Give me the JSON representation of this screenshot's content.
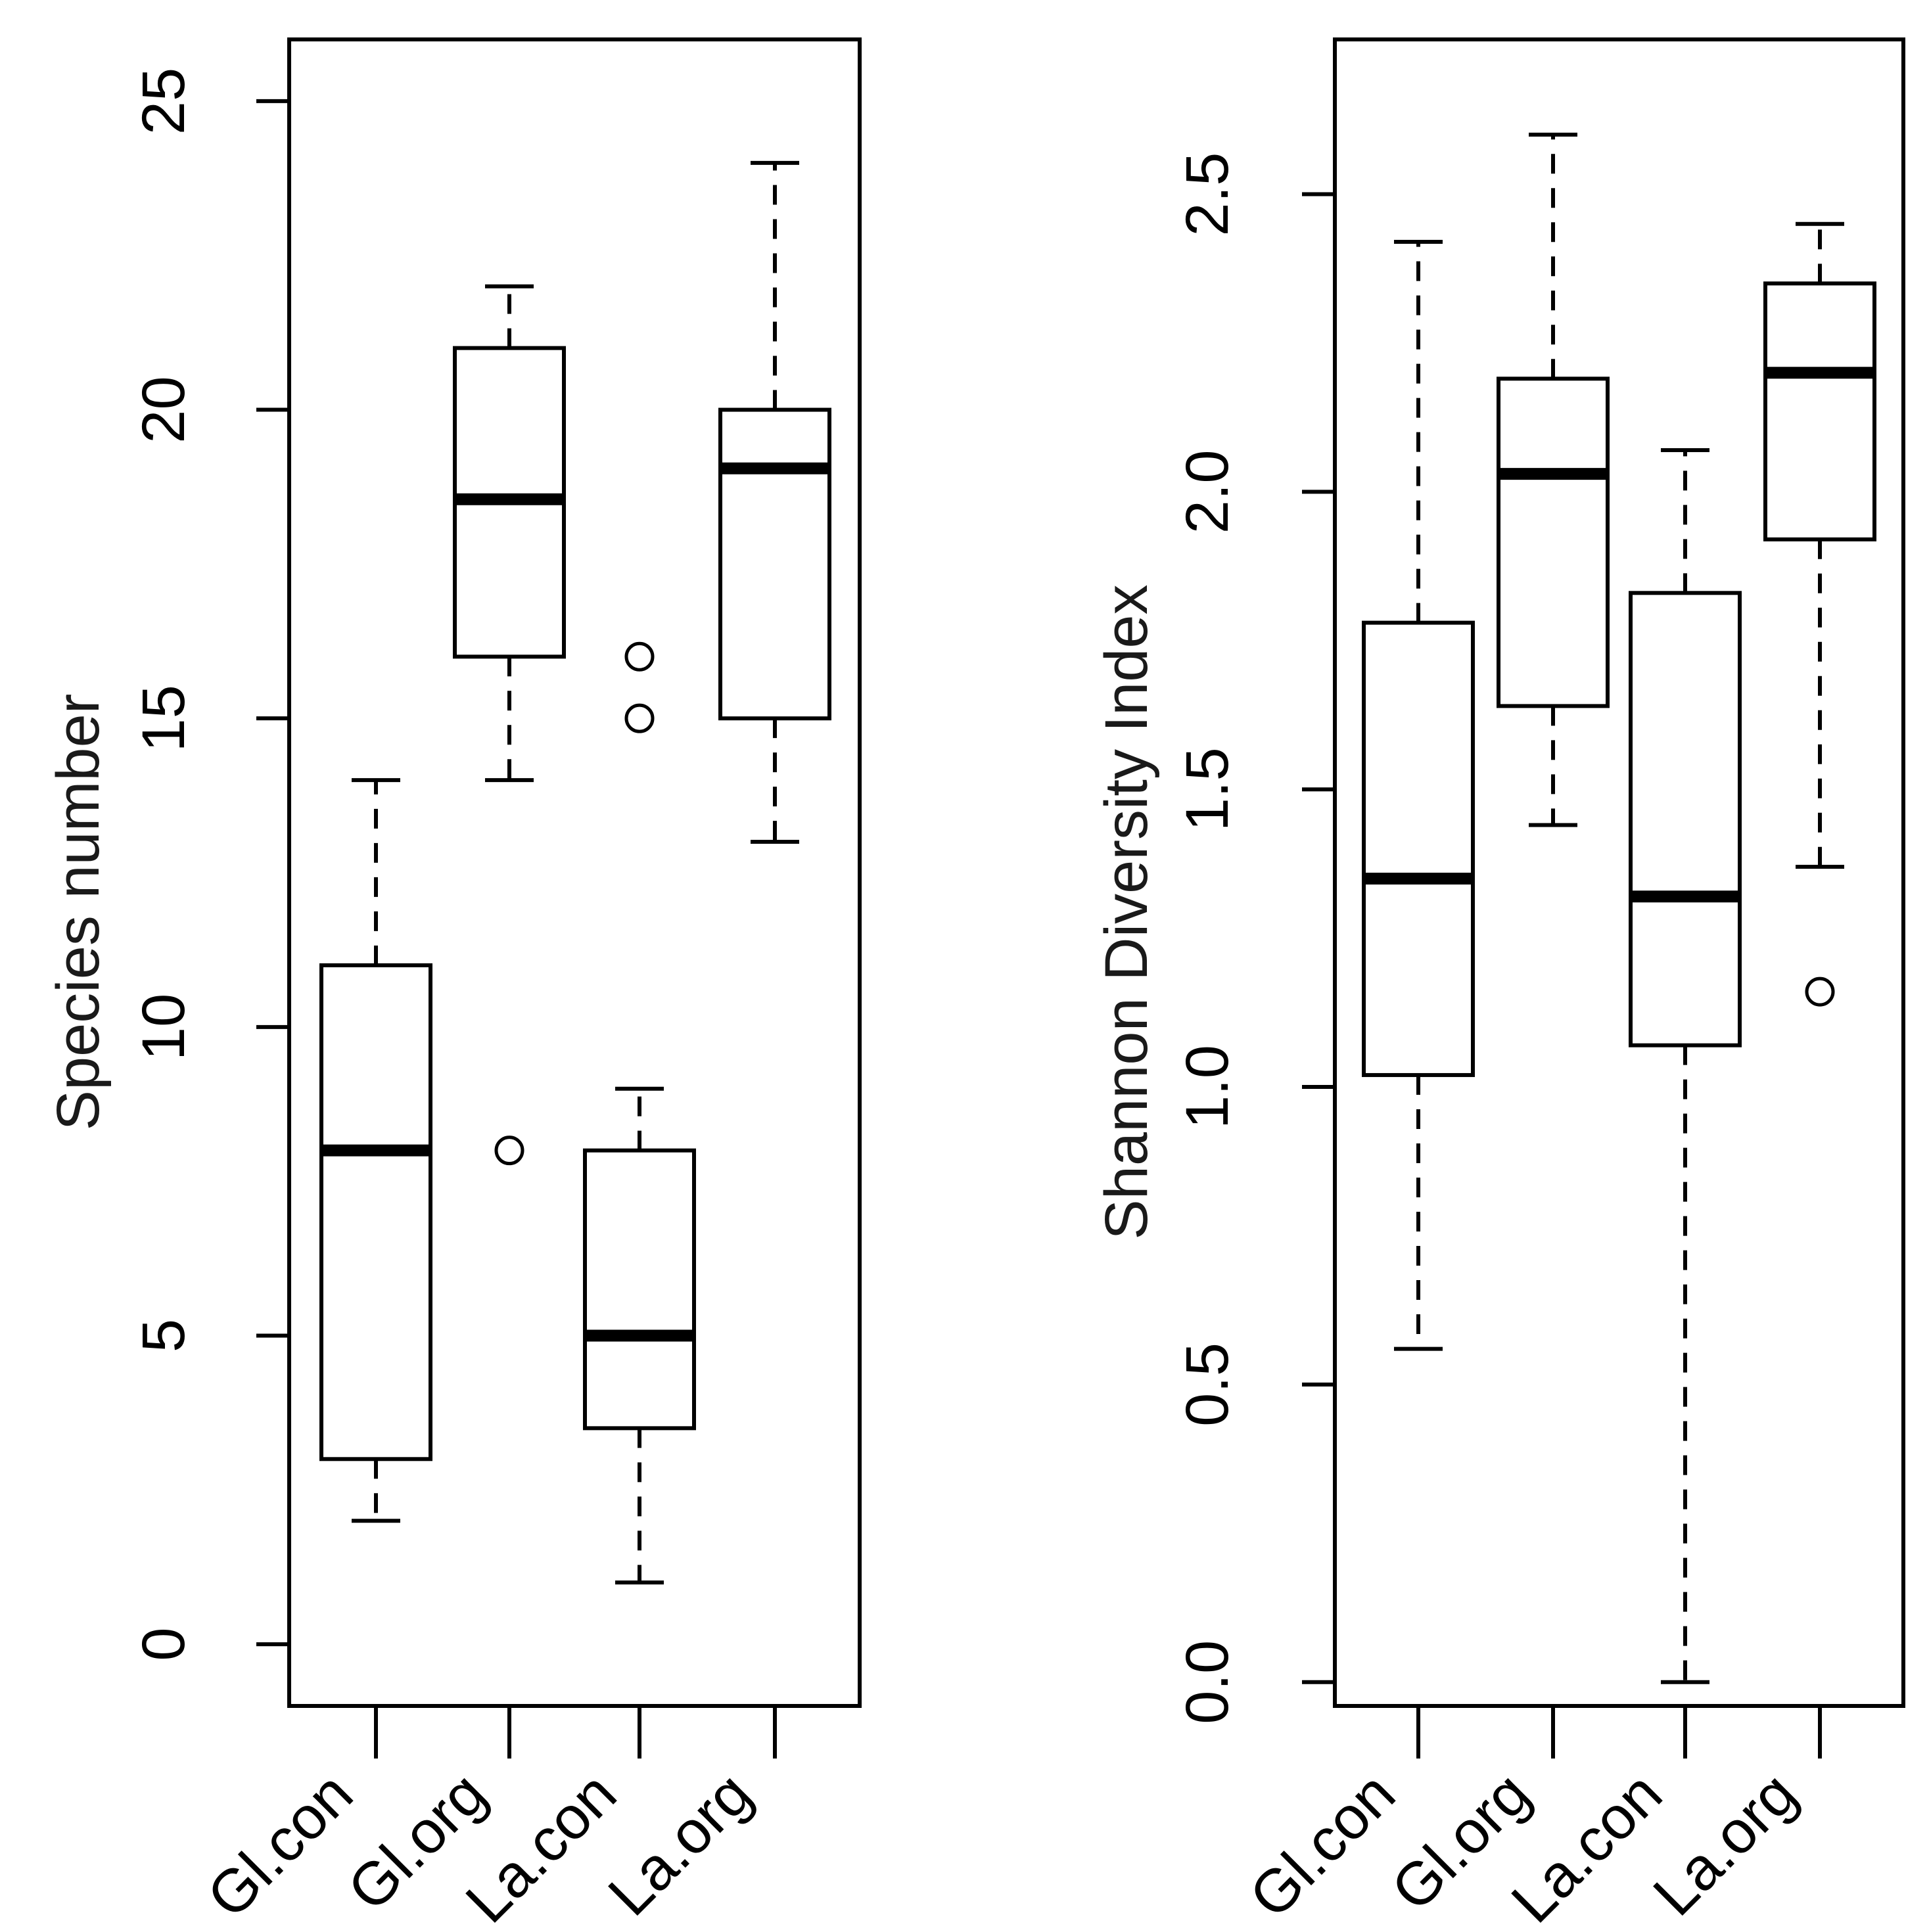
{
  "colors": {
    "ink": "#000000",
    "axis_label": "#1a1a1a",
    "background": "#ffffff"
  },
  "chart_data": [
    {
      "type": "boxplot",
      "title": "",
      "xlabel": "",
      "ylabel": "Species number",
      "ylim": [
        -1,
        26
      ],
      "yticks": [
        0,
        5,
        10,
        15,
        20,
        25
      ],
      "ytick_labels": [
        "0",
        "5",
        "10",
        "15",
        "20",
        "25"
      ],
      "categories": [
        "Gl.con",
        "Gl.org",
        "La.con",
        "La.org"
      ],
      "boxes": [
        {
          "category": "Gl.con",
          "whisker_low": 2,
          "q1": 3,
          "median": 8,
          "q3": 11,
          "whisker_high": 14,
          "outliers": []
        },
        {
          "category": "Gl.org",
          "whisker_low": 14,
          "q1": 16,
          "median": 18.55,
          "q3": 21,
          "whisker_high": 22,
          "outliers": [
            8
          ]
        },
        {
          "category": "La.con",
          "whisker_low": 1,
          "q1": 3.5,
          "median": 5,
          "q3": 8,
          "whisker_high": 9,
          "outliers": [
            15,
            16
          ]
        },
        {
          "category": "La.org",
          "whisker_low": 13,
          "q1": 15,
          "median": 19.05,
          "q3": 20,
          "whisker_high": 24,
          "outliers": []
        }
      ]
    },
    {
      "type": "boxplot",
      "title": "",
      "xlabel": "",
      "ylabel": "Shannon Diversity Index",
      "ylim": [
        -0.04,
        2.76
      ],
      "yticks": [
        0.0,
        0.5,
        1.0,
        1.5,
        2.0,
        2.5
      ],
      "ytick_labels": [
        "0.0",
        "0.5",
        "1.0",
        "1.5",
        "2.0",
        "2.5"
      ],
      "categories": [
        "Gl.con",
        "Gl.org",
        "La.con",
        "La.org"
      ],
      "boxes": [
        {
          "category": "Gl.con",
          "whisker_low": 0.56,
          "q1": 1.02,
          "median": 1.35,
          "q3": 1.78,
          "whisker_high": 2.42,
          "outliers": []
        },
        {
          "category": "Gl.org",
          "whisker_low": 1.44,
          "q1": 1.64,
          "median": 2.03,
          "q3": 2.19,
          "whisker_high": 2.6,
          "outliers": []
        },
        {
          "category": "La.con",
          "whisker_low": 0.0,
          "q1": 1.07,
          "median": 1.32,
          "q3": 1.83,
          "whisker_high": 2.07,
          "outliers": []
        },
        {
          "category": "La.org",
          "whisker_low": 1.37,
          "q1": 1.92,
          "median": 2.2,
          "q3": 2.35,
          "whisker_high": 2.45,
          "outliers": [
            1.16
          ]
        }
      ]
    }
  ]
}
